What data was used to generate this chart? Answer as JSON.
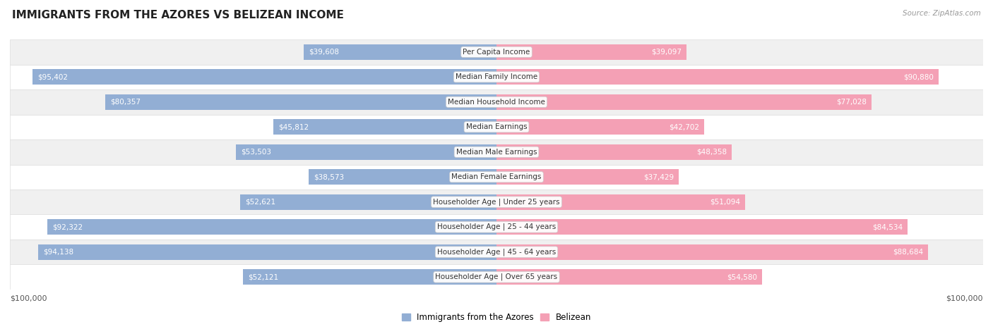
{
  "title": "IMMIGRANTS FROM THE AZORES VS BELIZEAN INCOME",
  "source": "Source: ZipAtlas.com",
  "categories": [
    "Per Capita Income",
    "Median Family Income",
    "Median Household Income",
    "Median Earnings",
    "Median Male Earnings",
    "Median Female Earnings",
    "Householder Age | Under 25 years",
    "Householder Age | 25 - 44 years",
    "Householder Age | 45 - 64 years",
    "Householder Age | Over 65 years"
  ],
  "azores_values": [
    39608,
    95402,
    80357,
    45812,
    53503,
    38573,
    52621,
    92322,
    94138,
    52121
  ],
  "belizean_values": [
    39097,
    90880,
    77028,
    42702,
    48358,
    37429,
    51094,
    84534,
    88684,
    54580
  ],
  "max_value": 100000,
  "azores_color": "#92aed4",
  "belizean_color": "#f4a0b5",
  "label_color_inside": "#ffffff",
  "label_color_outside": "#666666",
  "bg_row_even": "#f0f0f0",
  "bg_row_odd": "#ffffff",
  "row_border_color": "#dddddd",
  "bar_height": 0.62,
  "xlabel_left": "$100,000",
  "xlabel_right": "$100,000",
  "legend_azores": "Immigrants from the Azores",
  "legend_belizean": "Belizean",
  "inside_label_threshold": 0.18
}
